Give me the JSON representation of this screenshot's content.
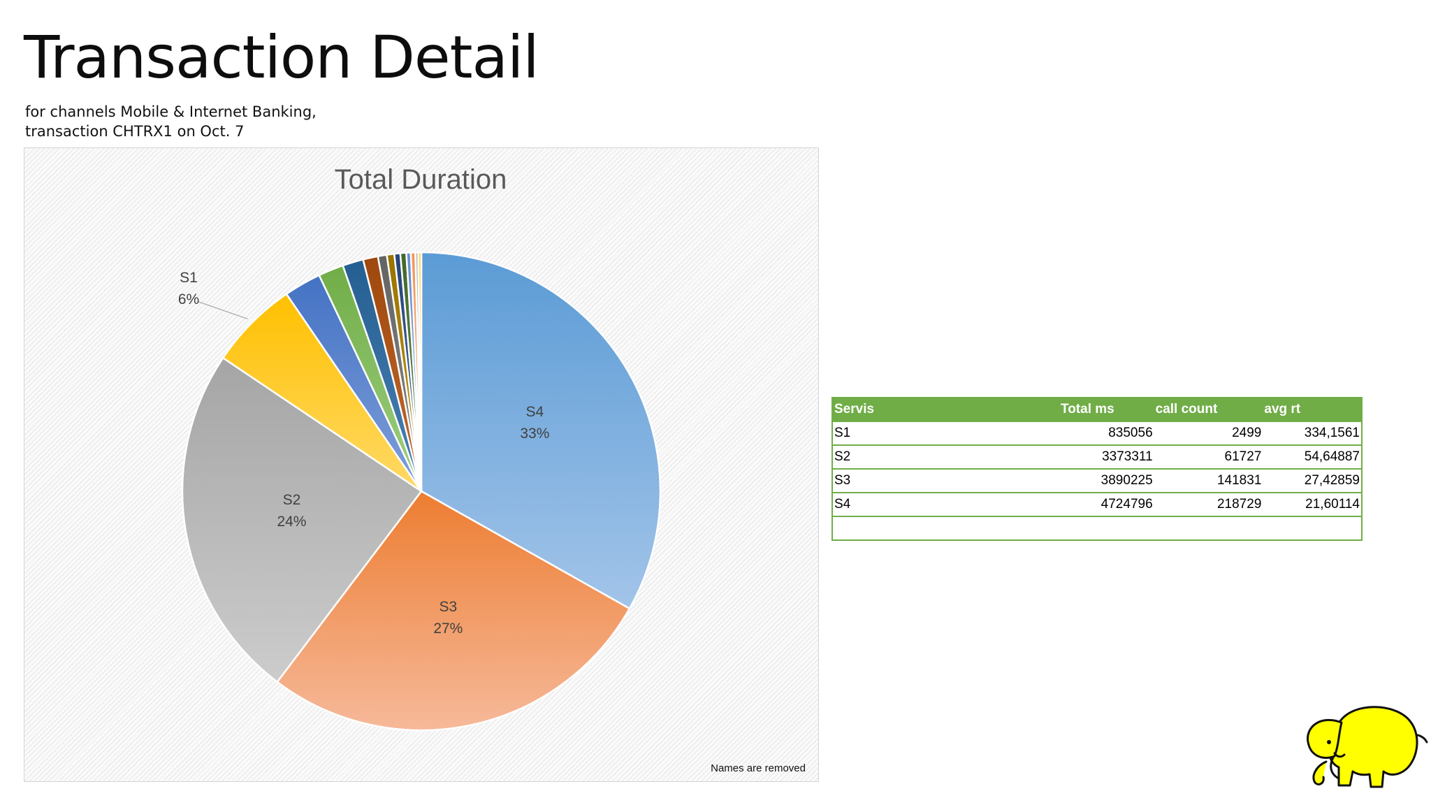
{
  "page": {
    "title": "Transaction Detail",
    "subtitle_lines": [
      "for channels Mobile & Internet Banking,",
      "transaction CHTRX1 on Oct. 7"
    ],
    "note": "Names are removed"
  },
  "chart_data": {
    "type": "pie",
    "title": "Total Duration",
    "slices": [
      {
        "label": "S4",
        "value": 33,
        "percent_label": "33%",
        "color": "#5b9bd5",
        "color_light": "#a2c4e9",
        "show_label": true
      },
      {
        "label": "S3",
        "value": 27,
        "percent_label": "27%",
        "color": "#ed7d31",
        "color_light": "#f6b99a",
        "show_label": true
      },
      {
        "label": "S2",
        "value": 24,
        "percent_label": "24%",
        "color": "#a5a5a5",
        "color_light": "#cccccc",
        "show_label": true
      },
      {
        "label": "S1",
        "value": 6,
        "percent_label": "6%",
        "color": "#ffc000",
        "color_light": "#ffd966",
        "show_label": true
      },
      {
        "label": "",
        "value": 2.5,
        "color": "#4472c4",
        "color_light": "#7f9fd9",
        "show_label": false
      },
      {
        "label": "",
        "value": 1.7,
        "color": "#70ad47",
        "color_light": "#9fcf81",
        "show_label": false
      },
      {
        "label": "",
        "value": 1.4,
        "color": "#255e91",
        "color_light": "#4a82b6",
        "show_label": false
      },
      {
        "label": "",
        "value": 1.0,
        "color": "#9e480e",
        "color_light": "#c46a2d",
        "show_label": false
      },
      {
        "label": "",
        "value": 0.6,
        "color": "#636363",
        "color_light": "#8c8c8c",
        "show_label": false
      },
      {
        "label": "",
        "value": 0.5,
        "color": "#997300",
        "color_light": "#c29a20",
        "show_label": false
      },
      {
        "label": "",
        "value": 0.4,
        "color": "#264478",
        "color_light": "#4e6da3",
        "show_label": false
      },
      {
        "label": "",
        "value": 0.4,
        "color": "#43682b",
        "color_light": "#6a9150",
        "show_label": false
      },
      {
        "label": "",
        "value": 0.3,
        "color": "#698ed0",
        "color_light": "#9ab3e0",
        "show_label": false
      },
      {
        "label": "",
        "value": 0.3,
        "color": "#f1975a",
        "color_light": "#f6bb93",
        "show_label": false
      },
      {
        "label": "",
        "value": 0.2,
        "color": "#b7b7b7",
        "color_light": "#d5d5d5",
        "show_label": false
      },
      {
        "label": "",
        "value": 0.2,
        "color": "#ffcd33",
        "color_light": "#ffe080",
        "show_label": false
      }
    ]
  },
  "table": {
    "headers": [
      "Servis",
      "Total ms",
      "call count",
      "avg rt"
    ],
    "rows": [
      [
        "S1",
        "835056",
        "2499",
        "334,1561"
      ],
      [
        "S2",
        "3373311",
        "61727",
        "54,64887"
      ],
      [
        "S3",
        "3890225",
        "141831",
        "27,42859"
      ],
      [
        "S4",
        "4724796",
        "218729",
        "21,60114"
      ],
      [
        "",
        "",
        "",
        ""
      ]
    ]
  },
  "logo": {
    "icon": "yellow-elephant-mascot-icon",
    "color": "#ffff00"
  }
}
